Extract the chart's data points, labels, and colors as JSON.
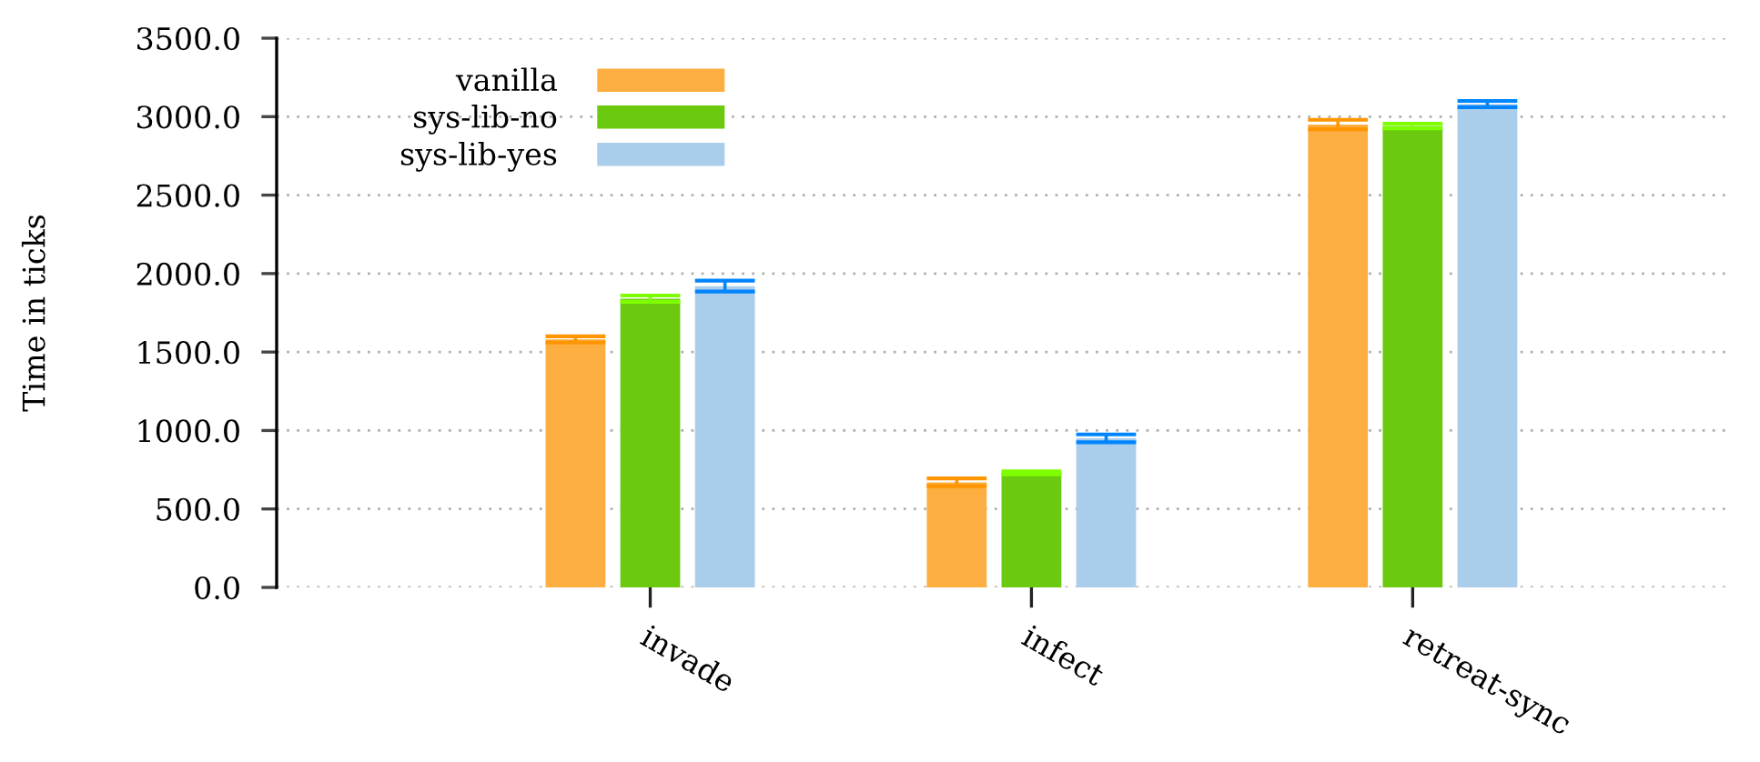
{
  "chart_data": {
    "type": "bar",
    "ylabel": "Time in ticks",
    "categories": [
      "invade",
      "infect",
      "retreat-sync"
    ],
    "series": [
      {
        "name": "vanilla",
        "color": "#fcae40",
        "values": [
          1580,
          670,
          2950
        ],
        "errors": [
          20,
          25,
          30
        ]
      },
      {
        "name": "sys-lib-no",
        "color": "#6bc90f",
        "values": [
          1840,
          730,
          2940
        ],
        "errors": [
          20,
          10,
          15
        ]
      },
      {
        "name": "sys-lib-yes",
        "color": "#abcdec",
        "values": [
          1920,
          950,
          3080
        ],
        "errors": [
          35,
          25,
          20
        ]
      }
    ],
    "ylim": [
      0,
      3500
    ],
    "yticks": [
      {
        "value": 0,
        "label": "0.0"
      },
      {
        "value": 500,
        "label": "500.0"
      },
      {
        "value": 1000,
        "label": "1000.0"
      },
      {
        "value": 1500,
        "label": "1500.0"
      },
      {
        "value": 2000,
        "label": "2000.0"
      },
      {
        "value": 2500,
        "label": "2500.0"
      },
      {
        "value": 3000,
        "label": "3000.0"
      },
      {
        "value": 3500,
        "label": "3500.0"
      }
    ],
    "grid": "y",
    "legend": "top left"
  }
}
